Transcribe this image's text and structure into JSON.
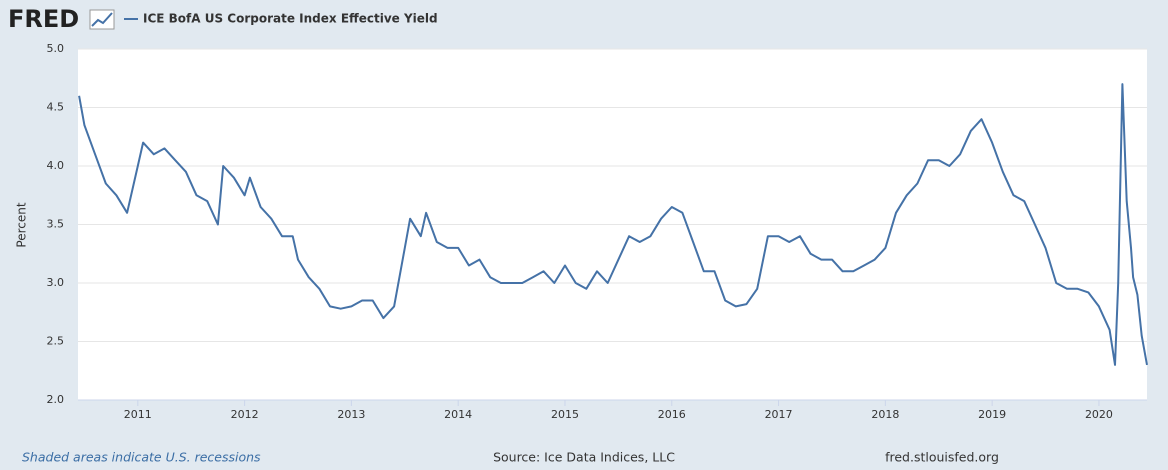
{
  "logo": "FRED",
  "footer": {
    "recessions": "Shaded areas indicate U.S. recessions",
    "source": "Source: Ice Data Indices, LLC",
    "site": "fred.stlouisfed.org"
  },
  "chart_data": {
    "type": "line",
    "ylabel": "Percent",
    "x": [
      2010.45,
      2010.5,
      2010.6,
      2010.7,
      2010.8,
      2010.9,
      2011.0,
      2011.05,
      2011.15,
      2011.25,
      2011.35,
      2011.45,
      2011.55,
      2011.65,
      2011.75,
      2011.8,
      2011.9,
      2012.0,
      2012.05,
      2012.15,
      2012.25,
      2012.35,
      2012.45,
      2012.5,
      2012.6,
      2012.7,
      2012.8,
      2012.9,
      2013.0,
      2013.1,
      2013.2,
      2013.3,
      2013.4,
      2013.5,
      2013.55,
      2013.65,
      2013.7,
      2013.8,
      2013.9,
      2014.0,
      2014.1,
      2014.2,
      2014.3,
      2014.4,
      2014.5,
      2014.6,
      2014.7,
      2014.8,
      2014.9,
      2015.0,
      2015.1,
      2015.2,
      2015.3,
      2015.4,
      2015.5,
      2015.6,
      2015.7,
      2015.8,
      2015.9,
      2016.0,
      2016.1,
      2016.2,
      2016.3,
      2016.4,
      2016.5,
      2016.6,
      2016.7,
      2016.8,
      2016.9,
      2017.0,
      2017.1,
      2017.2,
      2017.3,
      2017.4,
      2017.5,
      2017.6,
      2017.7,
      2017.8,
      2017.9,
      2018.0,
      2018.1,
      2018.2,
      2018.3,
      2018.4,
      2018.5,
      2018.6,
      2018.7,
      2018.8,
      2018.9,
      2019.0,
      2019.1,
      2019.2,
      2019.3,
      2019.4,
      2019.5,
      2019.6,
      2019.7,
      2019.8,
      2019.9,
      2020.0,
      2020.1,
      2020.15,
      2020.18,
      2020.22,
      2020.26,
      2020.3,
      2020.32,
      2020.36,
      2020.4,
      2020.45
    ],
    "series": [
      {
        "name": "ICE BofA US Corporate Index Effective Yield",
        "color": "#4572a7",
        "values": [
          4.6,
          4.35,
          4.1,
          3.85,
          3.75,
          3.6,
          4.0,
          4.2,
          4.1,
          4.15,
          4.05,
          3.95,
          3.75,
          3.7,
          3.5,
          4.0,
          3.9,
          3.75,
          3.9,
          3.65,
          3.55,
          3.4,
          3.4,
          3.2,
          3.05,
          2.95,
          2.8,
          2.78,
          2.8,
          2.85,
          2.85,
          2.7,
          2.8,
          3.3,
          3.55,
          3.4,
          3.6,
          3.35,
          3.3,
          3.3,
          3.15,
          3.2,
          3.05,
          3.0,
          3.0,
          3.0,
          3.05,
          3.1,
          3.0,
          3.15,
          3.0,
          2.95,
          3.1,
          3.0,
          3.2,
          3.4,
          3.35,
          3.4,
          3.55,
          3.65,
          3.6,
          3.35,
          3.1,
          3.1,
          2.85,
          2.8,
          2.82,
          2.95,
          3.4,
          3.4,
          3.35,
          3.4,
          3.25,
          3.2,
          3.2,
          3.1,
          3.1,
          3.15,
          3.2,
          3.3,
          3.6,
          3.75,
          3.85,
          4.05,
          4.05,
          4.0,
          4.1,
          4.3,
          4.4,
          4.2,
          3.95,
          3.75,
          3.7,
          3.5,
          3.3,
          3.0,
          2.95,
          2.95,
          2.92,
          2.8,
          2.6,
          2.3,
          3.0,
          4.7,
          3.7,
          3.3,
          3.05,
          2.9,
          2.55,
          2.3
        ]
      }
    ],
    "xlim": [
      2010.44,
      2020.45
    ],
    "xticks": [
      2011,
      2012,
      2013,
      2014,
      2015,
      2016,
      2017,
      2018,
      2019,
      2020
    ],
    "ylim": [
      2,
      5
    ],
    "yticks": [
      {
        "value": 2,
        "label": "2.0"
      },
      2.5,
      {
        "value": 3,
        "label": "3.0"
      },
      3.5,
      {
        "value": 4,
        "label": "4.0"
      },
      4.5,
      {
        "value": 5,
        "label": "5.0"
      }
    ],
    "grid": true
  }
}
